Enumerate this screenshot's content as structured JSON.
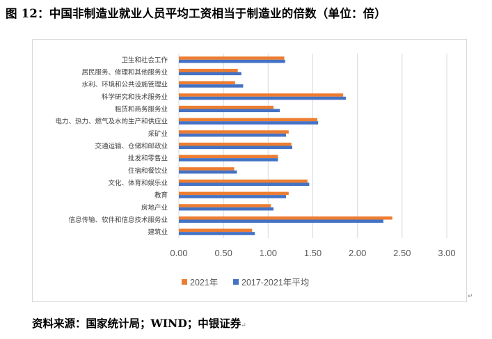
{
  "figure_title": "图 12：中国非制造业就业人员平均工资相当于制造业的倍数（单位：倍）",
  "source_note": "资料来源：国家统计局；WIND；中银证券",
  "colors": {
    "series_2021": "#ED7D31",
    "series_avg": "#4472C4",
    "grid": "#d9d9d9"
  },
  "chart_data": {
    "type": "bar",
    "orientation": "horizontal",
    "title": "",
    "xlabel": "",
    "ylabel": "",
    "xlim": [
      0,
      3.0
    ],
    "x_ticks": [
      "0.00",
      "0.50",
      "1.00",
      "1.50",
      "2.00",
      "2.50",
      "3.00"
    ],
    "grid": true,
    "legend_position": "bottom",
    "categories": [
      "卫生和社会工作",
      "居民服务、修理和其他服务业",
      "水利、环境和公共设施管理业",
      "科学研究和技术服务业",
      "租赁和商务服务业",
      "电力、热力、燃气及水的生产和供应业",
      "采矿业",
      "交通运输、仓储和邮政业",
      "批发和零售业",
      "住宿和餐饮业",
      "文化、体育和娱乐业",
      "教育",
      "房地产业",
      "信息传输、软件和信息技术服务业",
      "建筑业"
    ],
    "series": [
      {
        "name": "2021年",
        "values": [
          1.18,
          0.66,
          0.63,
          1.84,
          1.06,
          1.55,
          1.23,
          1.26,
          1.11,
          0.62,
          1.44,
          1.23,
          1.03,
          2.39,
          0.82
        ]
      },
      {
        "name": "2017-2021年平均",
        "values": [
          1.19,
          0.7,
          0.72,
          1.87,
          1.13,
          1.56,
          1.2,
          1.27,
          1.11,
          0.65,
          1.46,
          1.2,
          1.06,
          2.29,
          0.85
        ]
      }
    ]
  }
}
